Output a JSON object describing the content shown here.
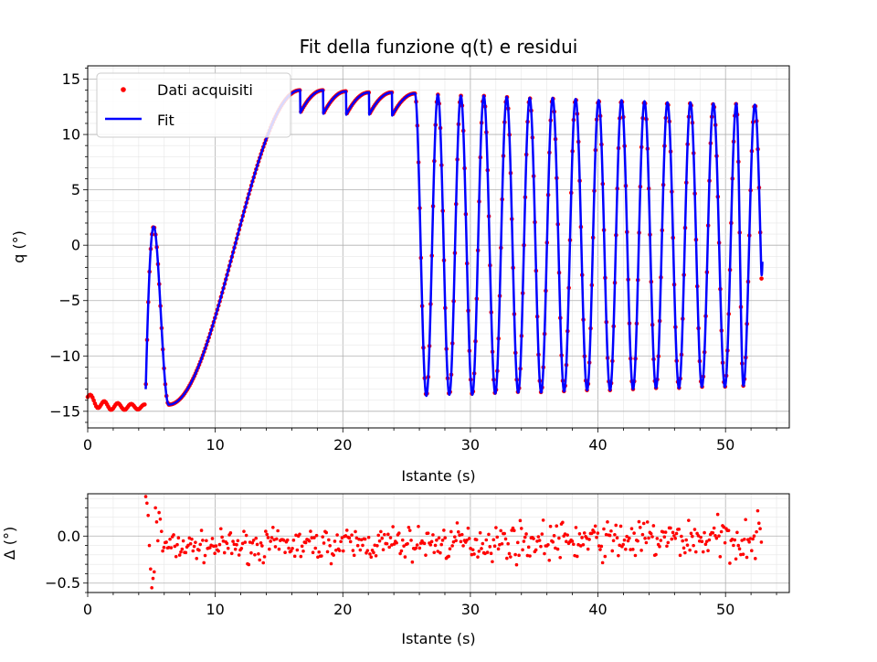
{
  "chart_data": [
    {
      "type": "scatter",
      "title": "Fit della funzione q(t) e residui",
      "xlabel": "Istante (s)",
      "ylabel": "q (°)",
      "xlim": [
        0,
        55
      ],
      "ylim": [
        -16.5,
        16.2
      ],
      "xticks": [
        0,
        10,
        20,
        30,
        40,
        50
      ],
      "yticks": [
        -15,
        -10,
        -5,
        0,
        5,
        10,
        15
      ],
      "xtick_labels": [
        "0",
        "10",
        "20",
        "30",
        "40",
        "50"
      ],
      "ytick_labels": [
        "−15",
        "−10",
        "−5",
        "0",
        "5",
        "10",
        "15"
      ],
      "grid": true,
      "legend_position": "top-left",
      "series": [
        {
          "name": "Dati acquisiti",
          "style": "points",
          "color": "#ff0000"
        },
        {
          "name": "Fit",
          "style": "line",
          "color": "#0000ff"
        }
      ],
      "signal": {
        "t_start": 0.0,
        "t_end": 52.9,
        "sample_step": 0.095,
        "release_time": 4.55,
        "period": 1.8,
        "initial_amplitude": 14.2,
        "final_amplitude": 12.6,
        "rest_offset": -14.0,
        "first_peak_times": [
          6.35,
          8.15,
          9.95,
          11.75,
          13.55,
          15.35
        ],
        "first_peak_values": [
          -14.4,
          -14.4,
          -14.3,
          -14.2,
          -14.1,
          -14.0
        ],
        "peak_times": [
          16.65,
          18.45,
          20.25,
          22.05,
          23.85,
          25.65,
          27.45,
          29.25,
          31.05,
          32.85,
          34.65,
          36.45,
          38.25,
          40.05,
          41.85,
          43.65,
          45.45,
          47.25,
          49.05,
          50.85,
          52.3
        ],
        "peak_values": [
          14.0,
          14.0,
          13.9,
          13.8,
          13.8,
          13.7,
          13.6,
          13.5,
          13.5,
          13.4,
          13.3,
          13.3,
          13.2,
          13.1,
          13.1,
          13.0,
          12.9,
          12.9,
          12.8,
          12.8,
          12.7
        ],
        "last_value": -1.0
      }
    },
    {
      "type": "scatter",
      "xlabel": "Istante (s)",
      "ylabel": "Δ (°)",
      "xlim": [
        0,
        55
      ],
      "ylim": [
        -0.6,
        0.45
      ],
      "xticks": [
        0,
        10,
        20,
        30,
        40,
        50
      ],
      "yticks": [
        -0.5,
        0.0
      ],
      "xtick_labels": [
        "0",
        "10",
        "20",
        "30",
        "40",
        "50"
      ],
      "ytick_labels": [
        "−0.5",
        "0.0"
      ],
      "grid": true,
      "series": [
        {
          "color": "#ff0000"
        }
      ],
      "residuals": {
        "t_start": 4.55,
        "t_end": 52.9,
        "sample_step": 0.095,
        "mean_start": -0.12,
        "mean_end": -0.02,
        "spread": 0.07,
        "initial_transient_values": [
          0.42,
          0.35,
          0.22,
          -0.1,
          -0.35,
          -0.55,
          -0.45,
          -0.38,
          0.3,
          0.15,
          -0.05,
          0.25,
          0.18,
          0.05
        ]
      }
    }
  ]
}
